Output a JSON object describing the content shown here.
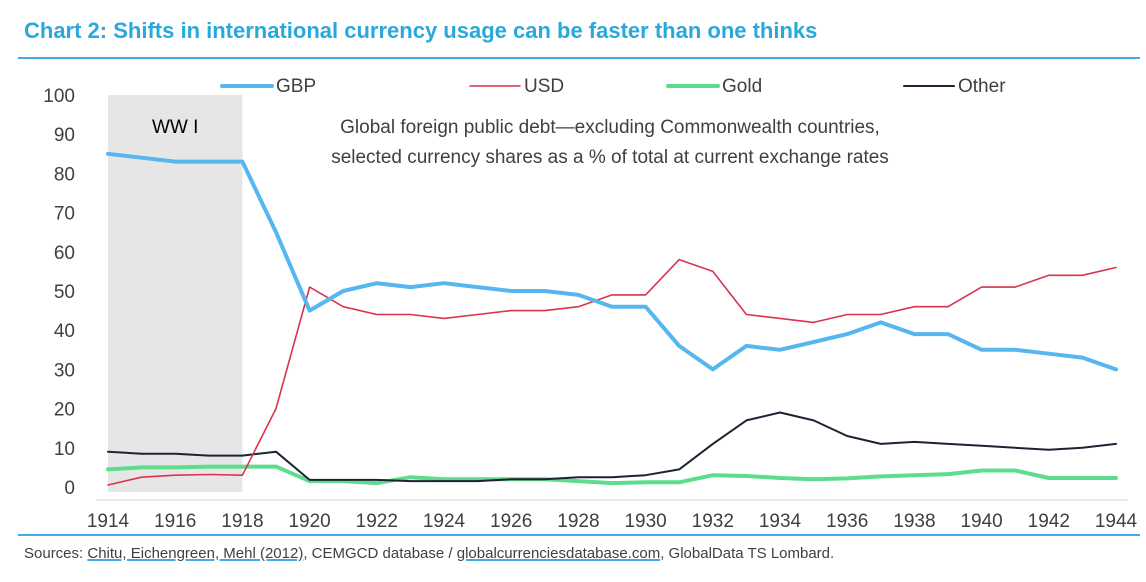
{
  "title": "Chart 2: Shifts in international currency usage can be faster than one thinks",
  "source": {
    "prefix": "Sources: ",
    "link1": "Chitu, Eichengreen, Mehl (2012)",
    "middle": ", CEMGCD database / ",
    "link2": "globalcurrenciesdatabase.com",
    "suffix": ", GlobalData TS Lombard."
  },
  "colors": {
    "GBP": "#56b6ef",
    "USD": "#d9334f",
    "Gold": "#5ddc8c",
    "Other": "#1a2433",
    "shade": "#e6e6e6"
  },
  "chart_data": {
    "type": "line",
    "xlim": [
      1914,
      1944
    ],
    "ylim": [
      0,
      100
    ],
    "yticks": [
      "0",
      "10",
      "20",
      "30",
      "40",
      "50",
      "60",
      "70",
      "80",
      "90",
      "100"
    ],
    "xticks": [
      "1914",
      "1916",
      "1918",
      "1920",
      "1922",
      "1924",
      "1926",
      "1928",
      "1930",
      "1932",
      "1934",
      "1936",
      "1938",
      "1940",
      "1942",
      "1944"
    ],
    "shaded_region": {
      "from": 1914,
      "to": 1918,
      "label": "WW I"
    },
    "annotation": [
      "Global foreign public debt—excluding Commonwealth countries,",
      "selected currency shares as a % of total at current exchange rates"
    ],
    "legend_position": "top",
    "x": [
      1914,
      1915,
      1916,
      1917,
      1918,
      1919,
      1920,
      1921,
      1922,
      1923,
      1924,
      1925,
      1926,
      1927,
      1928,
      1929,
      1930,
      1931,
      1932,
      1933,
      1934,
      1935,
      1936,
      1937,
      1938,
      1939,
      1940,
      1941,
      1942,
      1943,
      1944
    ],
    "series": [
      {
        "name": "GBP",
        "values": [
          85,
          84,
          83,
          83,
          83,
          65,
          45,
          50,
          52,
          51,
          52,
          51,
          50,
          50,
          49,
          46,
          46,
          36,
          30,
          36,
          35,
          37,
          39,
          42,
          39,
          39,
          35,
          35,
          34,
          33,
          30
        ]
      },
      {
        "name": "USD",
        "values": [
          0.5,
          2.5,
          3,
          3.2,
          3,
          20,
          51,
          46,
          44,
          44,
          43,
          44,
          45,
          45,
          46,
          49,
          49,
          58,
          55,
          44,
          43,
          42,
          44,
          44,
          46,
          46,
          51,
          51,
          54,
          54,
          56
        ]
      },
      {
        "name": "Gold",
        "values": [
          4.5,
          5,
          5,
          5.2,
          5.2,
          5.2,
          1.5,
          1.5,
          1,
          2.5,
          2,
          2,
          2,
          2,
          1.5,
          1,
          1.2,
          1.2,
          3,
          2.8,
          2.3,
          2,
          2.2,
          2.7,
          3,
          3.3,
          4.2,
          4.2,
          2.3,
          2.3,
          2.3
        ]
      },
      {
        "name": "Other",
        "values": [
          9,
          8.5,
          8.5,
          8,
          8,
          9,
          1.8,
          1.8,
          1.8,
          1.5,
          1.5,
          1.5,
          2,
          2,
          2.5,
          2.5,
          3,
          4.5,
          11,
          17,
          19,
          17,
          13,
          11,
          11.5,
          11,
          10.5,
          10,
          9.5,
          10,
          11
        ]
      }
    ]
  }
}
